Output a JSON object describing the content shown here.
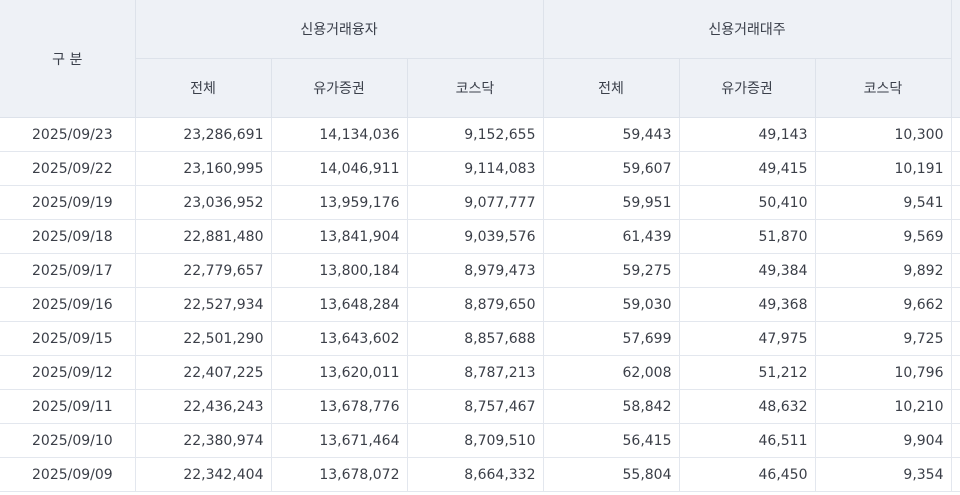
{
  "header": {
    "category_label": "구 분",
    "group_users": "신용거래융자",
    "group_lending": "신용거래대주",
    "sub_total": "전체",
    "sub_kospi": "유가증권",
    "sub_kosdaq": "코스닥"
  },
  "rows": [
    {
      "date": "2025/09/23",
      "u_total": "23,286,691",
      "u_kospi": "14,134,036",
      "u_kosdaq": "9,152,655",
      "l_total": "59,443",
      "l_kospi": "49,143",
      "l_kosdaq": "10,300"
    },
    {
      "date": "2025/09/22",
      "u_total": "23,160,995",
      "u_kospi": "14,046,911",
      "u_kosdaq": "9,114,083",
      "l_total": "59,607",
      "l_kospi": "49,415",
      "l_kosdaq": "10,191"
    },
    {
      "date": "2025/09/19",
      "u_total": "23,036,952",
      "u_kospi": "13,959,176",
      "u_kosdaq": "9,077,777",
      "l_total": "59,951",
      "l_kospi": "50,410",
      "l_kosdaq": "9,541"
    },
    {
      "date": "2025/09/18",
      "u_total": "22,881,480",
      "u_kospi": "13,841,904",
      "u_kosdaq": "9,039,576",
      "l_total": "61,439",
      "l_kospi": "51,870",
      "l_kosdaq": "9,569"
    },
    {
      "date": "2025/09/17",
      "u_total": "22,779,657",
      "u_kospi": "13,800,184",
      "u_kosdaq": "8,979,473",
      "l_total": "59,275",
      "l_kospi": "49,384",
      "l_kosdaq": "9,892"
    },
    {
      "date": "2025/09/16",
      "u_total": "22,527,934",
      "u_kospi": "13,648,284",
      "u_kosdaq": "8,879,650",
      "l_total": "59,030",
      "l_kospi": "49,368",
      "l_kosdaq": "9,662"
    },
    {
      "date": "2025/09/15",
      "u_total": "22,501,290",
      "u_kospi": "13,643,602",
      "u_kosdaq": "8,857,688",
      "l_total": "57,699",
      "l_kospi": "47,975",
      "l_kosdaq": "9,725"
    },
    {
      "date": "2025/09/12",
      "u_total": "22,407,225",
      "u_kospi": "13,620,011",
      "u_kosdaq": "8,787,213",
      "l_total": "62,008",
      "l_kospi": "51,212",
      "l_kosdaq": "10,796"
    },
    {
      "date": "2025/09/11",
      "u_total": "22,436,243",
      "u_kospi": "13,678,776",
      "u_kosdaq": "8,757,467",
      "l_total": "58,842",
      "l_kospi": "48,632",
      "l_kosdaq": "10,210"
    },
    {
      "date": "2025/09/10",
      "u_total": "22,380,974",
      "u_kospi": "13,671,464",
      "u_kosdaq": "8,709,510",
      "l_total": "56,415",
      "l_kospi": "46,511",
      "l_kosdaq": "9,904"
    },
    {
      "date": "2025/09/09",
      "u_total": "22,342,404",
      "u_kospi": "13,678,072",
      "u_kosdaq": "8,664,332",
      "l_total": "55,804",
      "l_kospi": "46,450",
      "l_kosdaq": "9,354"
    }
  ]
}
